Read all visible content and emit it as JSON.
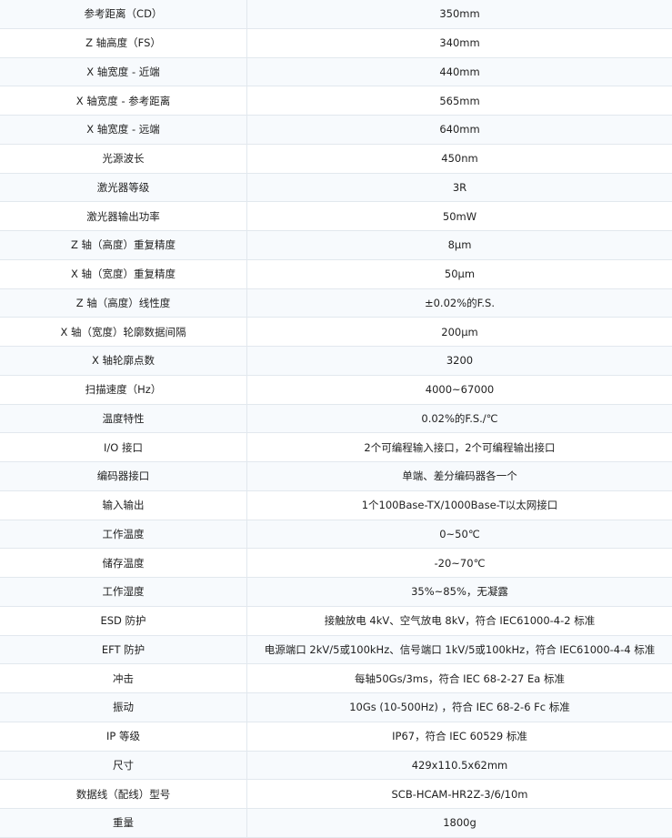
{
  "rows": [
    {
      "label": "参考距离（CD）",
      "value": "350mm"
    },
    {
      "label": "Z 轴高度（FS）",
      "value": "340mm"
    },
    {
      "label": "X 轴宽度 - 近端",
      "value": "440mm"
    },
    {
      "label": "X 轴宽度 - 参考距离",
      "value": "565mm"
    },
    {
      "label": "X 轴宽度 - 远端",
      "value": "640mm"
    },
    {
      "label": "光源波长",
      "value": "450nm"
    },
    {
      "label": "激光器等级",
      "value": "3R"
    },
    {
      "label": "激光器输出功率",
      "value": "50mW"
    },
    {
      "label": "Z 轴（高度）重复精度",
      "value": "8μm"
    },
    {
      "label": "X 轴（宽度）重复精度",
      "value": "50μm"
    },
    {
      "label": "Z 轴（高度）线性度",
      "value": "±0.02%的F.S."
    },
    {
      "label": "X 轴（宽度）轮廓数据间隔",
      "value": "200μm"
    },
    {
      "label": "X 轴轮廓点数",
      "value": "3200"
    },
    {
      "label": "扫描速度（Hz）",
      "value": "4000~67000"
    },
    {
      "label": "温度特性",
      "value": "0.02%的F.S./℃"
    },
    {
      "label": "I/O 接口",
      "value": "2个可编程输入接口，2个可编程输出接口"
    },
    {
      "label": "编码器接口",
      "value": "单端、差分编码器各一个"
    },
    {
      "label": "输入输出",
      "value": "1个100Base-TX/1000Base-T以太网接口"
    },
    {
      "label": "工作温度",
      "value": "0~50℃"
    },
    {
      "label": "储存温度",
      "value": "-20~70℃"
    },
    {
      "label": "工作湿度",
      "value": "35%~85%，无凝露"
    },
    {
      "label": "ESD 防护",
      "value": "接触放电 4kV、空气放电 8kV，符合 IEC61000-4-2 标准"
    },
    {
      "label": "EFT 防护",
      "value": "电源端口 2kV/5或100kHz、信号端口 1kV/5或100kHz，符合 IEC61000-4-4 标准"
    },
    {
      "label": "冲击",
      "value": "每轴50Gs/3ms，符合 IEC 68-2-27 Ea 标准"
    },
    {
      "label": "振动",
      "value": "10Gs (10-500Hz) ，符合 IEC 68-2-6 Fc 标准"
    },
    {
      "label": "IP 等级",
      "value": "IP67，符合 IEC 60529 标准"
    },
    {
      "label": "尺寸",
      "value": "429x110.5x62mm"
    },
    {
      "label": "数据线（配线）型号",
      "value": "SCB-HCAM-HR2Z-3/6/10m"
    },
    {
      "label": "重量",
      "value": "1800g"
    }
  ]
}
